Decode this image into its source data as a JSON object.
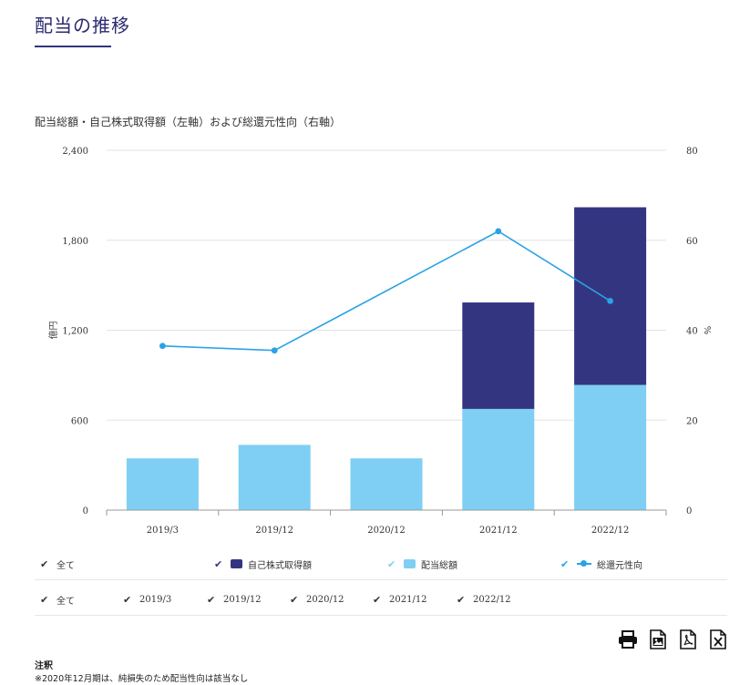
{
  "page": {
    "title": "配当の推移"
  },
  "chart_data": {
    "type": "bar",
    "title": "配当総額・自己株式取得額（左軸）および総還元性向（右軸）",
    "categories": [
      "2019/3",
      "2019/12",
      "2020/12",
      "2021/12",
      "2022/12"
    ],
    "series": [
      {
        "name": "配当総額",
        "kind": "bar",
        "stack": "total",
        "color": "#7ecff3",
        "values": [
          345,
          435,
          345,
          675,
          835
        ]
      },
      {
        "name": "自己株式取得額",
        "kind": "bar",
        "stack": "total",
        "color": "#343580",
        "values": [
          0,
          0,
          0,
          710,
          1185
        ]
      },
      {
        "name": "総還元性向",
        "kind": "line",
        "axis": "right",
        "color": "#2aa2e5",
        "values": [
          36.5,
          35.5,
          null,
          62,
          46.5
        ]
      }
    ],
    "ylabel": "億円",
    "ylim": [
      0,
      2400
    ],
    "yticks": [
      0,
      600,
      1200,
      1800,
      2400
    ],
    "ytick_labels": [
      "0",
      "600",
      "1,200",
      "1,800",
      "2,400"
    ],
    "y2label": "%",
    "y2lim": [
      0,
      80
    ],
    "y2ticks": [
      0,
      20,
      40,
      60,
      80
    ],
    "grid": true,
    "legend_position": "bottom"
  },
  "legend": {
    "all_label": "全て",
    "items": [
      {
        "label": "自己株式取得額",
        "color": "#343580"
      },
      {
        "label": "配当総額",
        "color": "#7ecff3"
      },
      {
        "label": "総還元性向",
        "color": "#2aa2e5"
      }
    ]
  },
  "period_filter": {
    "all_label": "全て",
    "items": [
      "2019/3",
      "2019/12",
      "2020/12",
      "2021/12",
      "2022/12"
    ]
  },
  "toolbar": {
    "icons": [
      "print-icon",
      "image-download-icon",
      "pdf-download-icon",
      "excel-download-icon"
    ]
  },
  "notes": {
    "title": "注釈",
    "text": "※2020年12月期は、純損失のため配当性向は該当なし"
  }
}
